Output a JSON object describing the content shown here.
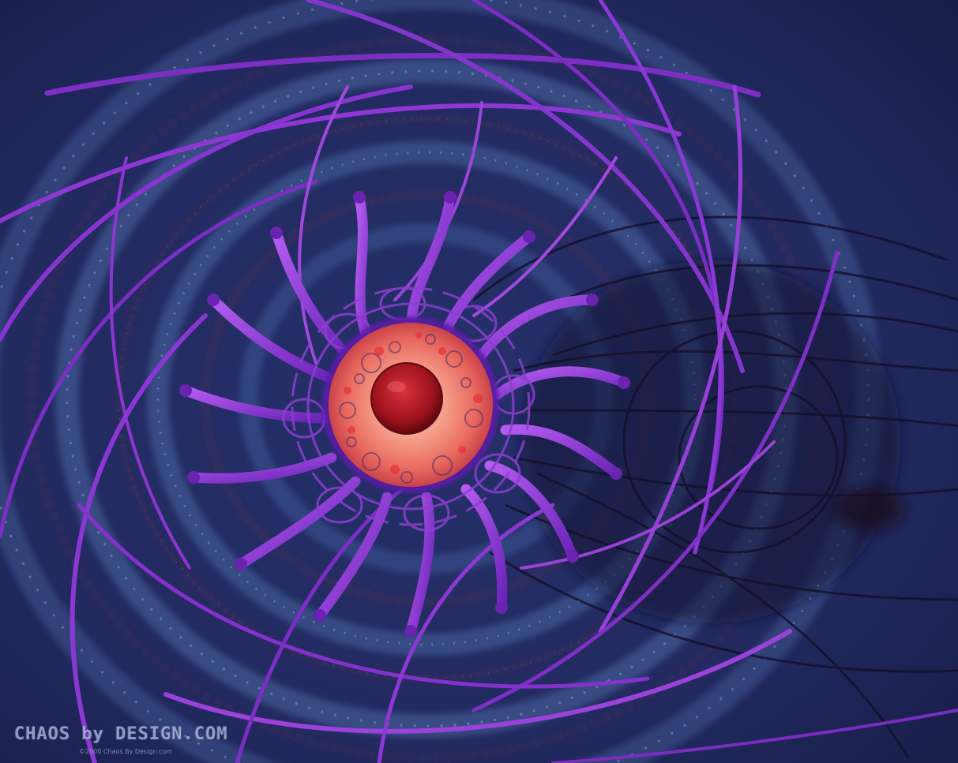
{
  "image": {
    "subject": "fractal-eye",
    "colors": {
      "background_dark": "#1b2150",
      "background_mid": "#2b3a72",
      "ring_light": "#5f7fb3",
      "ring_rust": "#6b2f3c",
      "tube_violet": "#8a35d8",
      "tube_magenta": "#b23fc6",
      "iris_coral": "#f07a6c",
      "pupil_red": "#a3141c"
    }
  },
  "watermark": {
    "text": "CHAOS by DESIGN.COM",
    "copyright": "©2000 Chaos By Design.com"
  }
}
